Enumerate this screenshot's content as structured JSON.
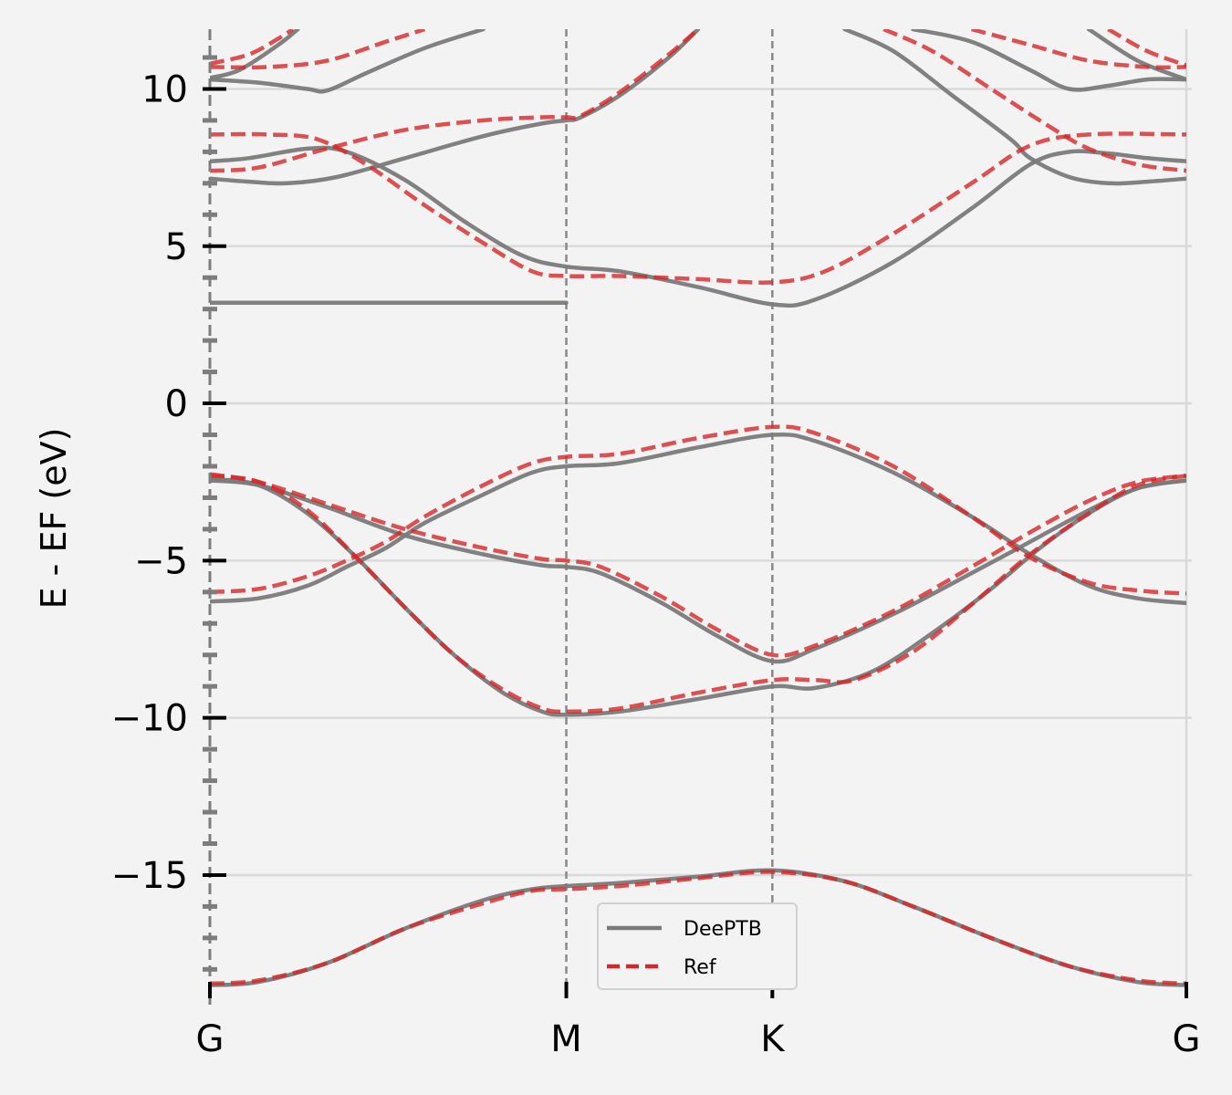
{
  "chart_data": {
    "type": "line",
    "title": "",
    "xlabel": "",
    "ylabel": "E - EF (eV)",
    "ylim": [
      -18.6,
      11.9
    ],
    "xlim": [
      0,
      1
    ],
    "yticks": [
      10,
      5,
      0,
      -5,
      -10,
      -15
    ],
    "ytick_labels": [
      "10",
      "5",
      "0",
      "−5",
      "−10",
      "−15"
    ],
    "kpoints": [
      {
        "label": "G",
        "x": 0.0
      },
      {
        "label": "M",
        "x": 0.365
      },
      {
        "label": "K",
        "x": 0.576
      },
      {
        "label": "G",
        "x": 1.0
      }
    ],
    "grid": "horizontal",
    "legend": {
      "placement": "lower-center",
      "entries": [
        {
          "name": "DeePTB",
          "style": "solid",
          "color": "#7a7a7a"
        },
        {
          "name": "Ref",
          "style": "dashed",
          "color": "#d62728"
        }
      ]
    },
    "series": [
      {
        "name": "DeePTB",
        "style": "solid",
        "color": "#7a7a7a",
        "bands": [
          [
            [
              0,
              -18.5
            ],
            [
              0.05,
              -18.4
            ],
            [
              0.12,
              -17.8
            ],
            [
              0.2,
              -16.7
            ],
            [
              0.28,
              -15.8
            ],
            [
              0.33,
              -15.45
            ],
            [
              0.365,
              -15.35
            ],
            [
              0.42,
              -15.25
            ],
            [
              0.5,
              -15.05
            ],
            [
              0.576,
              -14.85
            ],
            [
              0.65,
              -15.2
            ],
            [
              0.72,
              -16.0
            ],
            [
              0.8,
              -17.0
            ],
            [
              0.88,
              -17.9
            ],
            [
              0.95,
              -18.4
            ],
            [
              1,
              -18.5
            ]
          ],
          [
            [
              0,
              -2.4
            ],
            [
              0.05,
              -2.6
            ],
            [
              0.1,
              -3.5
            ],
            [
              0.15,
              -4.9
            ],
            [
              0.2,
              -6.5
            ],
            [
              0.25,
              -8.0
            ],
            [
              0.3,
              -9.2
            ],
            [
              0.34,
              -9.8
            ],
            [
              0.365,
              -9.9
            ],
            [
              0.42,
              -9.8
            ],
            [
              0.5,
              -9.4
            ],
            [
              0.576,
              -9.0
            ],
            [
              0.62,
              -9.05
            ],
            [
              0.68,
              -8.5
            ],
            [
              0.74,
              -7.3
            ],
            [
              0.8,
              -5.9
            ],
            [
              0.85,
              -4.6
            ],
            [
              0.9,
              -3.5
            ],
            [
              0.95,
              -2.7
            ],
            [
              1,
              -2.45
            ]
          ],
          [
            [
              0,
              -2.45
            ],
            [
              0.05,
              -2.6
            ],
            [
              0.12,
              -3.3
            ],
            [
              0.2,
              -4.2
            ],
            [
              0.28,
              -4.8
            ],
            [
              0.34,
              -5.15
            ],
            [
              0.365,
              -5.2
            ],
            [
              0.4,
              -5.4
            ],
            [
              0.46,
              -6.3
            ],
            [
              0.52,
              -7.4
            ],
            [
              0.576,
              -8.2
            ],
            [
              0.62,
              -7.8
            ],
            [
              0.7,
              -6.7
            ],
            [
              0.78,
              -5.4
            ],
            [
              0.84,
              -4.4
            ],
            [
              0.9,
              -3.4
            ],
            [
              0.95,
              -2.7
            ],
            [
              1,
              -2.45
            ]
          ],
          [
            [
              0,
              -6.3
            ],
            [
              0.05,
              -6.2
            ],
            [
              0.1,
              -5.8
            ],
            [
              0.14,
              -5.2
            ],
            [
              0.18,
              -4.6
            ],
            [
              0.22,
              -3.8
            ],
            [
              0.28,
              -2.9
            ],
            [
              0.33,
              -2.2
            ],
            [
              0.365,
              -2.0
            ],
            [
              0.42,
              -1.9
            ],
            [
              0.5,
              -1.4
            ],
            [
              0.576,
              -1.0
            ],
            [
              0.62,
              -1.2
            ],
            [
              0.7,
              -2.2
            ],
            [
              0.78,
              -3.6
            ],
            [
              0.84,
              -4.8
            ],
            [
              0.9,
              -5.8
            ],
            [
              0.95,
              -6.2
            ],
            [
              1,
              -6.35
            ]
          ],
          [
            [
              0,
              3.2
            ],
            [
              0.365,
              3.2
            ]
          ],
          [
            [
              0,
              7.15
            ],
            [
              0.04,
              7.05
            ],
            [
              0.08,
              7.0
            ],
            [
              0.13,
              7.2
            ],
            [
              0.2,
              7.8
            ],
            [
              0.28,
              8.5
            ],
            [
              0.34,
              8.9
            ],
            [
              0.365,
              9.0
            ],
            [
              0.38,
              9.1
            ],
            [
              0.42,
              9.8
            ],
            [
              0.47,
              11.0
            ],
            [
              0.5,
              11.9
            ]
          ],
          [
            [
              0,
              7.7
            ],
            [
              0.04,
              7.8
            ],
            [
              0.1,
              8.1
            ],
            [
              0.14,
              8.0
            ],
            [
              0.2,
              7.1
            ],
            [
              0.26,
              5.8
            ],
            [
              0.32,
              4.7
            ],
            [
              0.365,
              4.35
            ],
            [
              0.42,
              4.2
            ],
            [
              0.5,
              3.7
            ],
            [
              0.576,
              3.15
            ],
            [
              0.62,
              3.3
            ],
            [
              0.7,
              4.5
            ],
            [
              0.78,
              6.2
            ],
            [
              0.84,
              7.6
            ],
            [
              0.88,
              8.0
            ],
            [
              0.92,
              7.95
            ],
            [
              0.96,
              7.8
            ],
            [
              1,
              7.7
            ]
          ],
          [
            [
              0,
              10.3
            ],
            [
              0.05,
              10.2
            ],
            [
              0.1,
              10.0
            ],
            [
              0.12,
              9.95
            ],
            [
              0.16,
              10.5
            ],
            [
              0.22,
              11.3
            ],
            [
              0.28,
              11.9
            ]
          ],
          [
            [
              0,
              10.35
            ],
            [
              0.03,
              10.6
            ],
            [
              0.07,
              11.4
            ],
            [
              0.09,
              11.9
            ]
          ],
          [
            [
              0.65,
              11.9
            ],
            [
              0.7,
              11.2
            ],
            [
              0.76,
              9.8
            ],
            [
              0.82,
              8.4
            ],
            [
              0.84,
              7.8
            ],
            [
              0.88,
              7.2
            ],
            [
              0.92,
              7.0
            ],
            [
              0.96,
              7.05
            ],
            [
              1,
              7.15
            ]
          ],
          [
            [
              0.72,
              11.9
            ],
            [
              0.78,
              11.5
            ],
            [
              0.84,
              10.6
            ],
            [
              0.88,
              10.0
            ],
            [
              0.92,
              10.1
            ],
            [
              0.96,
              10.3
            ],
            [
              1,
              10.3
            ]
          ],
          [
            [
              0.9,
              11.9
            ],
            [
              0.95,
              10.9
            ],
            [
              1,
              10.3
            ]
          ]
        ]
      },
      {
        "name": "Ref",
        "style": "dashed",
        "color": "#d62728",
        "bands": [
          [
            [
              0,
              -18.45
            ],
            [
              0.05,
              -18.35
            ],
            [
              0.12,
              -17.8
            ],
            [
              0.2,
              -16.7
            ],
            [
              0.28,
              -15.9
            ],
            [
              0.33,
              -15.5
            ],
            [
              0.365,
              -15.45
            ],
            [
              0.42,
              -15.35
            ],
            [
              0.5,
              -15.1
            ],
            [
              0.576,
              -14.9
            ],
            [
              0.65,
              -15.2
            ],
            [
              0.72,
              -16.0
            ],
            [
              0.8,
              -17.0
            ],
            [
              0.88,
              -17.9
            ],
            [
              0.95,
              -18.35
            ],
            [
              1,
              -18.45
            ]
          ],
          [
            [
              0,
              -2.3
            ],
            [
              0.05,
              -2.5
            ],
            [
              0.1,
              -3.4
            ],
            [
              0.15,
              -4.9
            ],
            [
              0.2,
              -6.5
            ],
            [
              0.25,
              -8.0
            ],
            [
              0.3,
              -9.1
            ],
            [
              0.34,
              -9.7
            ],
            [
              0.365,
              -9.8
            ],
            [
              0.42,
              -9.7
            ],
            [
              0.5,
              -9.2
            ],
            [
              0.576,
              -8.8
            ],
            [
              0.62,
              -8.8
            ],
            [
              0.66,
              -8.8
            ],
            [
              0.72,
              -7.9
            ],
            [
              0.78,
              -6.4
            ],
            [
              0.84,
              -4.8
            ],
            [
              0.9,
              -3.5
            ],
            [
              0.95,
              -2.6
            ],
            [
              1,
              -2.3
            ]
          ],
          [
            [
              0,
              -2.25
            ],
            [
              0.05,
              -2.5
            ],
            [
              0.12,
              -3.2
            ],
            [
              0.2,
              -4.0
            ],
            [
              0.28,
              -4.6
            ],
            [
              0.34,
              -4.95
            ],
            [
              0.365,
              -5.0
            ],
            [
              0.4,
              -5.2
            ],
            [
              0.46,
              -6.1
            ],
            [
              0.52,
              -7.2
            ],
            [
              0.576,
              -8.0
            ],
            [
              0.62,
              -7.7
            ],
            [
              0.7,
              -6.6
            ],
            [
              0.78,
              -5.2
            ],
            [
              0.84,
              -4.1
            ],
            [
              0.9,
              -3.1
            ],
            [
              0.95,
              -2.5
            ],
            [
              1,
              -2.3
            ]
          ],
          [
            [
              0,
              -6.0
            ],
            [
              0.05,
              -5.9
            ],
            [
              0.1,
              -5.5
            ],
            [
              0.14,
              -5.0
            ],
            [
              0.18,
              -4.4
            ],
            [
              0.22,
              -3.6
            ],
            [
              0.28,
              -2.6
            ],
            [
              0.33,
              -1.9
            ],
            [
              0.365,
              -1.7
            ],
            [
              0.42,
              -1.6
            ],
            [
              0.5,
              -1.1
            ],
            [
              0.576,
              -0.75
            ],
            [
              0.62,
              -0.95
            ],
            [
              0.7,
              -2.0
            ],
            [
              0.78,
              -3.6
            ],
            [
              0.84,
              -4.9
            ],
            [
              0.9,
              -5.7
            ],
            [
              0.95,
              -5.95
            ],
            [
              1,
              -6.05
            ]
          ],
          [
            [
              0,
              7.4
            ],
            [
              0.05,
              7.5
            ],
            [
              0.12,
              8.1
            ],
            [
              0.2,
              8.7
            ],
            [
              0.28,
              9.0
            ],
            [
              0.34,
              9.1
            ],
            [
              0.365,
              9.1
            ],
            [
              0.38,
              9.15
            ],
            [
              0.42,
              9.9
            ],
            [
              0.47,
              11.1
            ],
            [
              0.5,
              11.9
            ]
          ],
          [
            [
              0,
              8.55
            ],
            [
              0.06,
              8.55
            ],
            [
              0.11,
              8.4
            ],
            [
              0.16,
              7.6
            ],
            [
              0.22,
              6.3
            ],
            [
              0.28,
              5.1
            ],
            [
              0.33,
              4.2
            ],
            [
              0.365,
              4.05
            ],
            [
              0.42,
              4.05
            ],
            [
              0.5,
              3.95
            ],
            [
              0.576,
              3.85
            ],
            [
              0.63,
              4.2
            ],
            [
              0.7,
              5.4
            ],
            [
              0.78,
              7.0
            ],
            [
              0.84,
              8.2
            ],
            [
              0.9,
              8.55
            ],
            [
              1,
              8.55
            ]
          ],
          [
            [
              0,
              10.7
            ],
            [
              0.06,
              10.7
            ],
            [
              0.12,
              10.9
            ],
            [
              0.18,
              11.5
            ],
            [
              0.22,
              11.9
            ]
          ],
          [
            [
              0,
              10.8
            ],
            [
              0.04,
              11.1
            ],
            [
              0.07,
              11.6
            ],
            [
              0.085,
              11.9
            ]
          ],
          [
            [
              0.69,
              11.9
            ],
            [
              0.74,
              11.2
            ],
            [
              0.8,
              10.0
            ],
            [
              0.86,
              8.8
            ],
            [
              0.9,
              8.1
            ],
            [
              0.95,
              7.6
            ],
            [
              1,
              7.4
            ]
          ],
          [
            [
              0.78,
              11.9
            ],
            [
              0.84,
              11.4
            ],
            [
              0.9,
              10.9
            ],
            [
              0.96,
              10.7
            ],
            [
              1,
              10.7
            ]
          ],
          [
            [
              0.92,
              11.9
            ],
            [
              0.96,
              11.2
            ],
            [
              1,
              10.75
            ]
          ]
        ]
      }
    ]
  }
}
